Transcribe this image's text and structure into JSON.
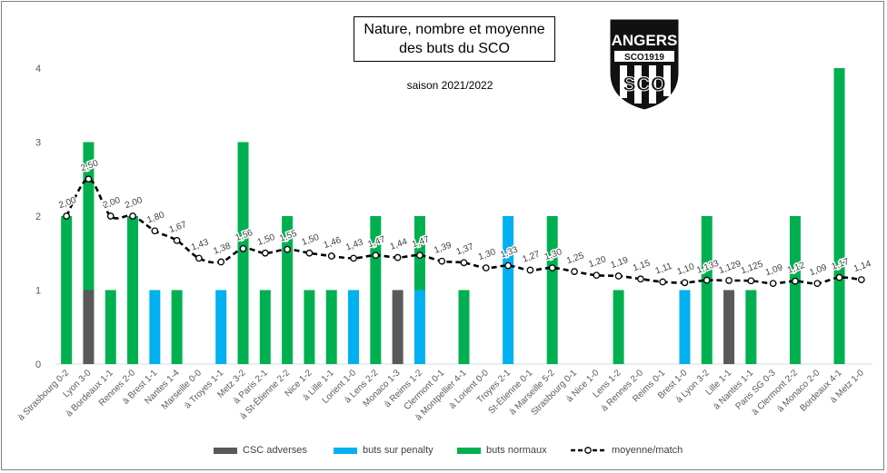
{
  "title_line1": "Nature, nombre et moyenne",
  "title_line2": "des buts du SCO",
  "subtitle": "saison 2021/2022",
  "logo": {
    "text_top": "ANGERS",
    "text_band": "SCO1919",
    "text_bottom": "SCO",
    "icon": "angers-sco-crest"
  },
  "colors": {
    "csc": "#595959",
    "penalty": "#00b0f0",
    "normal": "#00b050",
    "line": "#000000",
    "axis_text": "#595959"
  },
  "legend": {
    "csc": "CSC adverses",
    "penalty": "buts sur penalty",
    "normal": "buts normaux",
    "moyenne": "moyenne/match"
  },
  "chart_data": {
    "type": "bar",
    "stacked": true,
    "ylim": [
      0,
      4
    ],
    "yticks": [
      "0",
      "1",
      "2",
      "3",
      "4"
    ],
    "grid": false,
    "legend_position": "bottom",
    "categories": [
      "à Strasbourg 0-2",
      "Lyon 3-0",
      "à Bordeaux 1-1",
      "Rennes 2-0",
      "à Brest 1-1",
      "Nantes 1-4",
      "Marseille 0-0",
      "à Troyes 1-1",
      "Metz 3-2",
      "à Paris 2-1",
      "à St-Étienne 2-2",
      "Nice 1-2",
      "à Lille 1-1",
      "Lorient 1-0",
      "à Lens 2-2",
      "Monaco 1-3",
      "à Reims 1-2",
      "Clermont 0-1",
      "à Montpellier 4-1",
      "à Lorient 0-0",
      "Troyes 2-1",
      "St-Étienne 0-1",
      "à Marseille 5-2",
      "Strasbourg 0-1",
      "à Nice 1-0",
      "Lens 1-2",
      "à Rennes 2-0",
      "Reims 0-1",
      "Brest 1-0",
      "à Lyon 3-2",
      "Lille 1-1",
      "à Nantes 1-1",
      "Paris SG 0-3",
      "à Clermont 2-2",
      "à Monaco 2-0",
      "Bordeaux 4-1",
      "à Metz 1-0"
    ],
    "series": [
      {
        "name": "CSC adverses",
        "values": [
          0,
          1,
          0,
          0,
          0,
          0,
          0,
          0,
          0,
          0,
          0,
          0,
          0,
          0,
          0,
          1,
          0,
          0,
          0,
          0,
          0,
          0,
          0,
          0,
          0,
          0,
          0,
          0,
          0,
          0,
          1,
          0,
          0,
          0,
          0,
          0,
          0
        ]
      },
      {
        "name": "buts sur penalty",
        "values": [
          0,
          0,
          0,
          0,
          1,
          0,
          0,
          1,
          0,
          0,
          0,
          0,
          0,
          1,
          0,
          0,
          1,
          0,
          0,
          0,
          2,
          0,
          0,
          0,
          0,
          0,
          0,
          0,
          1,
          0,
          0,
          0,
          0,
          0,
          0,
          0,
          0
        ]
      },
      {
        "name": "buts normaux",
        "values": [
          2,
          2,
          1,
          2,
          0,
          1,
          0,
          0,
          3,
          1,
          2,
          1,
          1,
          0,
          2,
          0,
          1,
          0,
          1,
          0,
          0,
          0,
          2,
          0,
          0,
          1,
          0,
          0,
          0,
          2,
          0,
          1,
          0,
          2,
          0,
          4,
          0
        ]
      },
      {
        "name": "moyenne/match",
        "type": "line",
        "values": [
          2.0,
          2.5,
          2.0,
          2.0,
          1.8,
          1.67,
          1.43,
          1.38,
          1.56,
          1.5,
          1.55,
          1.5,
          1.46,
          1.43,
          1.47,
          1.44,
          1.47,
          1.39,
          1.37,
          1.3,
          1.33,
          1.27,
          1.3,
          1.25,
          1.2,
          1.19,
          1.15,
          1.11,
          1.1,
          1.133,
          1.129,
          1.125,
          1.09,
          1.12,
          1.09,
          1.17,
          1.14
        ],
        "labels": [
          "2,00",
          "2,50",
          "2,00",
          "2,00",
          "1,80",
          "1,67",
          "1,43",
          "1,38",
          "1,56",
          "1,50",
          "1,55",
          "1,50",
          "1,46",
          "1,43",
          "1,47",
          "1,44",
          "1,47",
          "1,39",
          "1,37",
          "1,30",
          "1,33",
          "1,27",
          "1,30",
          "1,25",
          "1,20",
          "1,19",
          "1,15",
          "1,11",
          "1,10",
          "1,133",
          "1,129",
          "1,125",
          "1,09",
          "1,12",
          "1,09",
          "1,17",
          "1,14"
        ]
      }
    ]
  }
}
